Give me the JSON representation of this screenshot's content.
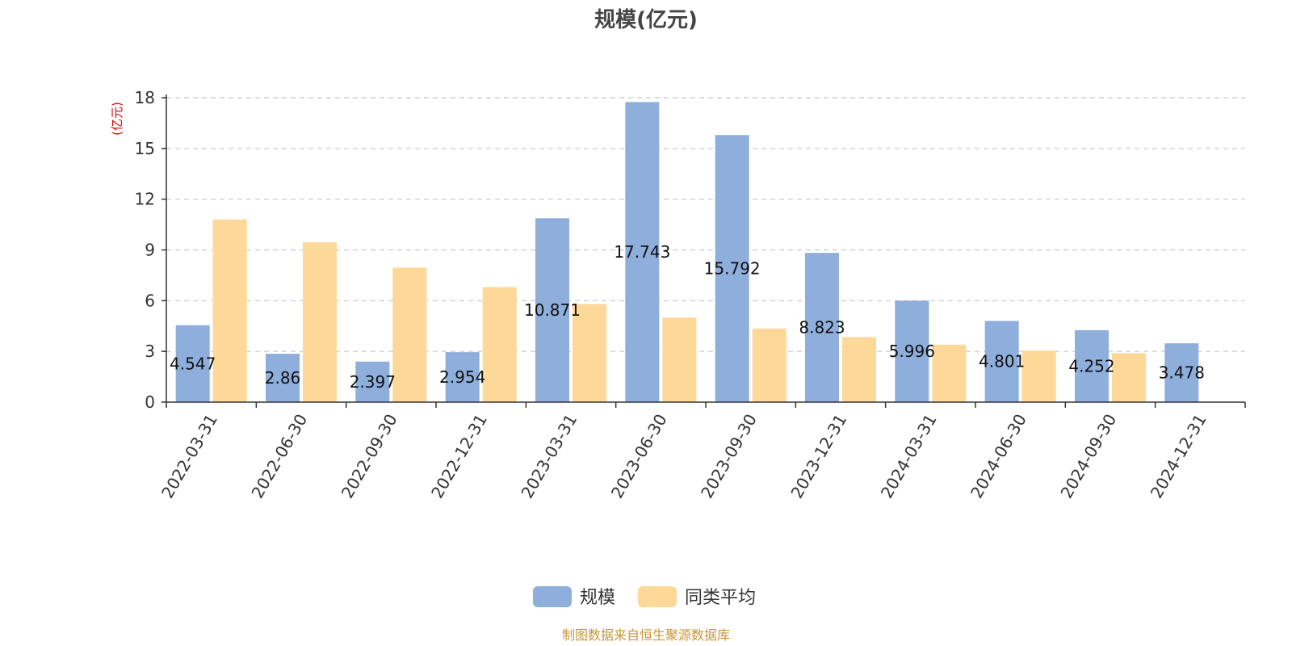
{
  "chart_data": {
    "type": "bar",
    "title": "规模(亿元)",
    "ylabel": "(亿元)",
    "xlabel": "",
    "ylim": [
      0,
      18
    ],
    "yticks": [
      0,
      3,
      6,
      9,
      12,
      15,
      18
    ],
    "grid": true,
    "legend_position": "bottom-center",
    "categories": [
      "2022-03-31",
      "2022-06-30",
      "2022-09-30",
      "2022-12-31",
      "2023-03-31",
      "2023-06-30",
      "2023-09-30",
      "2023-12-31",
      "2024-03-31",
      "2024-06-30",
      "2024-09-30",
      "2024-12-31"
    ],
    "series": [
      {
        "name": "规模",
        "color": "#8eaedb",
        "values": [
          4.547,
          2.86,
          2.397,
          2.954,
          10.871,
          17.743,
          15.792,
          8.823,
          5.996,
          4.801,
          4.252,
          3.478
        ],
        "labels": [
          "4.547",
          "2.86",
          "2.397",
          "2.954",
          "10.871",
          "17.743",
          "15.792",
          "8.823",
          "5.996",
          "4.801",
          "4.252",
          "3.478"
        ]
      },
      {
        "name": "同类平均",
        "color": "#fdd899",
        "values": [
          10.8,
          9.45,
          7.95,
          6.8,
          5.8,
          5.0,
          4.35,
          3.85,
          3.4,
          3.05,
          2.9,
          null
        ]
      }
    ]
  },
  "footer": {
    "source": "制图数据来自恒生聚源数据库"
  }
}
